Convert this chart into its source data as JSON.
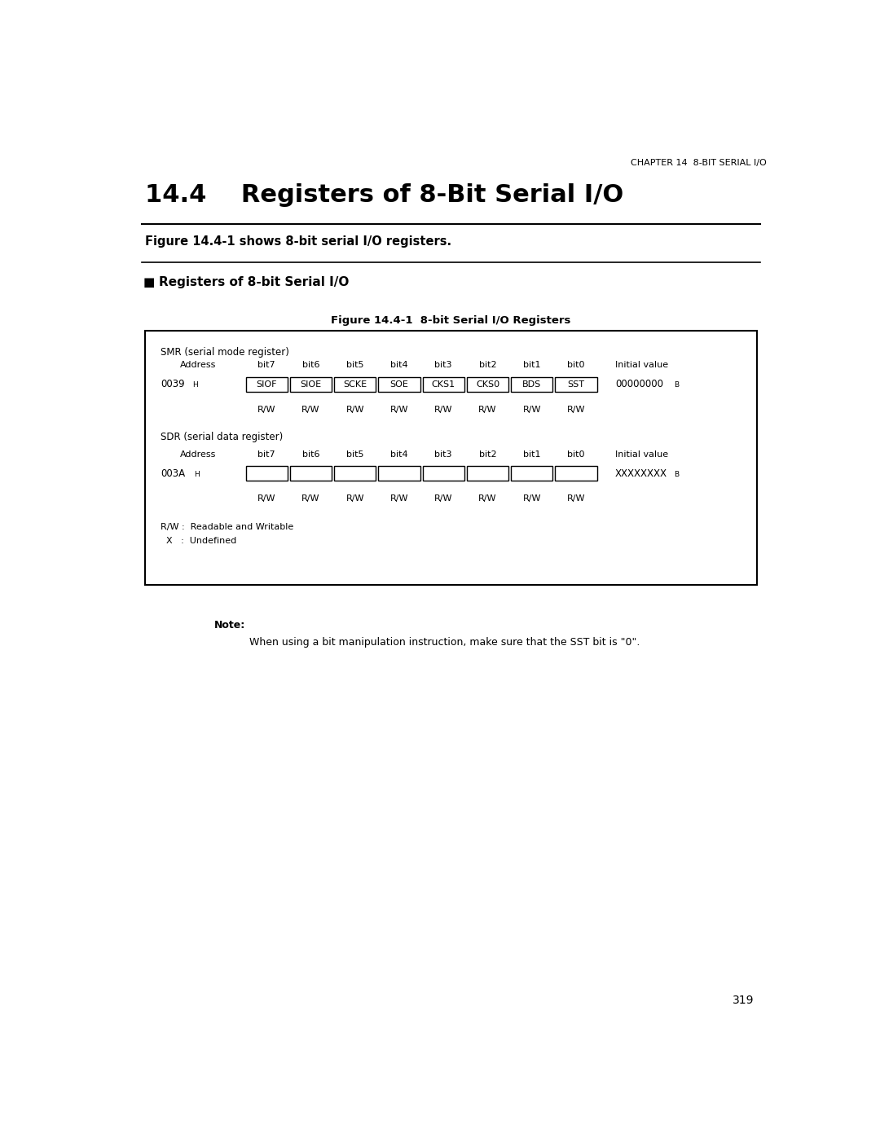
{
  "page_header": "CHAPTER 14  8-BIT SERIAL I/O",
  "title": "14.4    Registers of 8-Bit Serial I/O",
  "subtitle": "Figure 14.4-1 shows 8-bit serial I/O registers.",
  "section_header": "Registers of 8-bit Serial I/O",
  "figure_title": "Figure 14.4-1  8-bit Serial I/O Registers",
  "smr_label": "SMR (serial mode register)",
  "sdr_label": "SDR (serial data register)",
  "smr_address": "0039",
  "smr_bits": [
    "SIOF",
    "SIOE",
    "SCKE",
    "SOE",
    "CKS1",
    "CKS0",
    "BDS",
    "SST"
  ],
  "smr_initial": "00000000",
  "sdr_address": "003A",
  "sdr_initial": "XXXXXXXX",
  "rw_readable": "R/W :  Readable and Writable",
  "x_undefined": "X   :  Undefined",
  "note_label": "Note:",
  "note_text": "When using a bit manipulation instruction, make sure that the SST bit is \"0\".",
  "page_number": "319",
  "bg_color": "#ffffff",
  "text_color": "#000000"
}
